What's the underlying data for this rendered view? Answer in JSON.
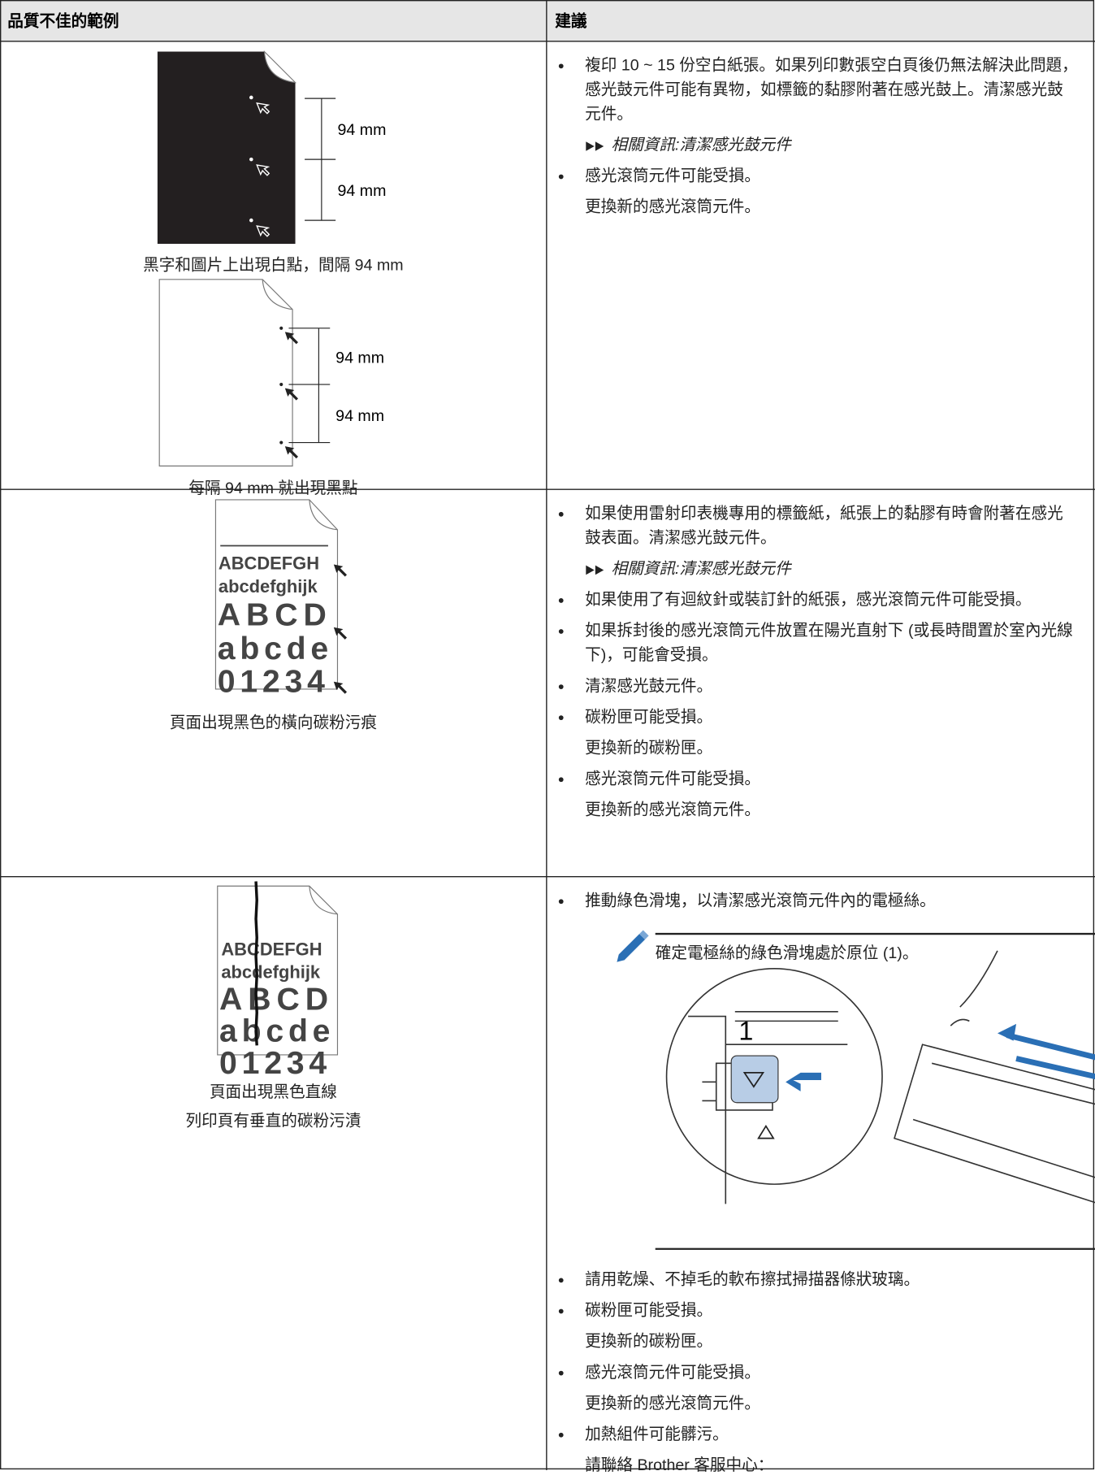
{
  "header": {
    "columns": [
      "品質不佳的範例",
      "建議"
    ]
  },
  "rows": [
    {
      "example": {
        "captions": [
          "黑字和圖片上出現白點，間隔 94 mm",
          "每隔 94 mm 就出現黑點"
        ],
        "figure_labels": [
          "94 mm",
          "94 mm",
          "94 mm",
          "94 mm"
        ]
      },
      "advice": [
        {
          "text": "複印 10 ~ 15 份空白紙張。如果列印數張空白頁後仍無法解決此問題，感光鼓元件可能有異物，如標籤的黏膠附著在感光鼓上。清潔感光鼓元件。",
          "link": "相關資訊:清潔感光鼓元件"
        },
        {
          "text": "感光滾筒元件可能受損。",
          "followup": "更換新的感光滾筒元件。"
        }
      ]
    },
    {
      "example": {
        "captions": [
          "頁面出現黑色的橫向碳粉污痕"
        ],
        "figure_labels": [
          "ABCDEFGH",
          "abcdefghijk",
          "ABCD",
          "abcde",
          "01234"
        ]
      },
      "advice": [
        {
          "text": "如果使用雷射印表機專用的標籤紙，紙張上的黏膠有時會附著在感光鼓表面。清潔感光鼓元件。",
          "link": "相關資訊:清潔感光鼓元件"
        },
        {
          "text": "如果使用了有迴紋針或裝訂針的紙張，感光滾筒元件可能受損。"
        },
        {
          "text": "如果拆封後的感光滾筒元件放置在陽光直射下 (或長時間置於室內光線下)，可能會受損。"
        },
        {
          "text": "清潔感光鼓元件。"
        },
        {
          "text": "碳粉匣可能受損。",
          "followup": "更換新的碳粉匣。"
        },
        {
          "text": "感光滾筒元件可能受損。",
          "followup": "更換新的感光滾筒元件。"
        }
      ]
    },
    {
      "example": {
        "captions": [
          "頁面出現黑色直線",
          "列印頁有垂直的碳粉污漬"
        ],
        "figure_labels": [
          "ABCDEFGH",
          "abcdefghijk",
          "ABCD",
          "abcde",
          "01234"
        ]
      },
      "advice": [
        {
          "text": "推動綠色滑塊，以清潔感光滾筒元件內的電極絲。",
          "note": "確定電極絲的綠色滑塊處於原位 (1)。",
          "note_figure_label": "1"
        },
        {
          "text": "請用乾燥、不掉毛的軟布擦拭掃描器條狀玻璃。"
        },
        {
          "text": "碳粉匣可能受損。",
          "followup": "更換新的碳粉匣。"
        },
        {
          "text": "感光滾筒元件可能受損。",
          "followup": "更換新的感光滾筒元件。"
        },
        {
          "text": "加熱組件可能髒污。",
          "followup": "請聯絡 Brother 客服中心："
        }
      ]
    }
  ]
}
